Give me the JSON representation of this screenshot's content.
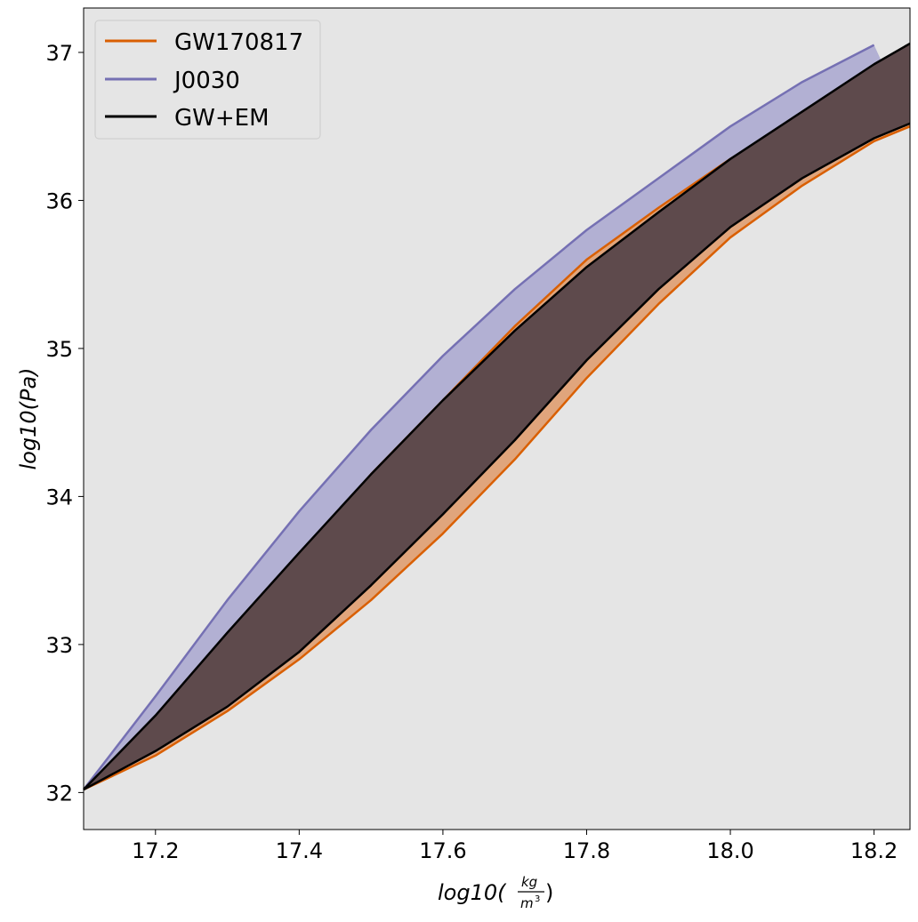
{
  "chart_data": {
    "type": "area",
    "xlabel_main": "log10(",
    "xlabel_num": "kg",
    "xlabel_den": "m",
    "xlabel_den_exp": "3",
    "xlabel_close": ")",
    "ylabel": "log10(Pa)",
    "xlim": [
      17.1,
      18.25
    ],
    "ylim": [
      31.75,
      37.3
    ],
    "xticks": [
      17.2,
      17.4,
      17.6,
      17.8,
      18.0,
      18.2
    ],
    "xtick_labels": [
      "17.2",
      "17.4",
      "17.6",
      "17.8",
      "18.0",
      "18.2"
    ],
    "yticks": [
      32,
      33,
      34,
      35,
      36,
      37
    ],
    "ytick_labels": [
      "32",
      "33",
      "34",
      "35",
      "36",
      "37"
    ],
    "grid": false,
    "background": "#e5e5e5",
    "legend_position": "top-left",
    "series": [
      {
        "name": "J0030",
        "color": "#7570b3",
        "fill": "#b2b0d3",
        "upper": [
          [
            17.1,
            32.02
          ],
          [
            17.2,
            32.65
          ],
          [
            17.3,
            33.3
          ],
          [
            17.4,
            33.9
          ],
          [
            17.5,
            34.45
          ],
          [
            17.6,
            34.95
          ],
          [
            17.7,
            35.4
          ],
          [
            17.8,
            35.8
          ],
          [
            17.9,
            36.15
          ],
          [
            18.0,
            36.5
          ],
          [
            18.1,
            36.8
          ],
          [
            18.2,
            37.05
          ]
        ],
        "lower": [
          [
            17.1,
            32.02
          ],
          [
            17.2,
            32.28
          ],
          [
            17.3,
            32.6
          ],
          [
            17.4,
            33.02
          ],
          [
            17.5,
            33.48
          ],
          [
            17.6,
            33.96
          ],
          [
            17.7,
            34.45
          ],
          [
            17.8,
            34.95
          ],
          [
            17.9,
            35.45
          ],
          [
            18.0,
            35.9
          ],
          [
            18.1,
            36.22
          ],
          [
            18.2,
            36.45
          ],
          [
            18.25,
            36.52
          ]
        ]
      },
      {
        "name": "GW170817",
        "color": "#d95f02",
        "fill": "#e0a57c",
        "upper": [
          [
            17.1,
            32.02
          ],
          [
            17.2,
            32.5
          ],
          [
            17.3,
            33.05
          ],
          [
            17.4,
            33.6
          ],
          [
            17.5,
            34.15
          ],
          [
            17.6,
            34.65
          ],
          [
            17.7,
            35.15
          ],
          [
            17.8,
            35.6
          ],
          [
            17.9,
            35.95
          ],
          [
            18.0,
            36.28
          ],
          [
            18.1,
            36.58
          ],
          [
            18.2,
            36.88
          ],
          [
            18.25,
            37.0
          ]
        ],
        "lower": [
          [
            17.1,
            32.02
          ],
          [
            17.2,
            32.25
          ],
          [
            17.3,
            32.55
          ],
          [
            17.4,
            32.9
          ],
          [
            17.5,
            33.3
          ],
          [
            17.6,
            33.75
          ],
          [
            17.7,
            34.25
          ],
          [
            17.8,
            34.8
          ],
          [
            17.9,
            35.3
          ],
          [
            18.0,
            35.75
          ],
          [
            18.1,
            36.1
          ],
          [
            18.2,
            36.4
          ],
          [
            18.25,
            36.5
          ]
        ]
      },
      {
        "name": "GW+EM",
        "color": "#000000",
        "fill": "#5e4a4c",
        "upper": [
          [
            17.1,
            32.02
          ],
          [
            17.2,
            32.52
          ],
          [
            17.3,
            33.08
          ],
          [
            17.4,
            33.62
          ],
          [
            17.5,
            34.15
          ],
          [
            17.6,
            34.65
          ],
          [
            17.7,
            35.12
          ],
          [
            17.8,
            35.55
          ],
          [
            17.9,
            35.92
          ],
          [
            18.0,
            36.28
          ],
          [
            18.1,
            36.6
          ],
          [
            18.2,
            36.92
          ],
          [
            18.25,
            37.06
          ]
        ],
        "lower": [
          [
            17.1,
            32.02
          ],
          [
            17.2,
            32.28
          ],
          [
            17.3,
            32.58
          ],
          [
            17.4,
            32.95
          ],
          [
            17.5,
            33.4
          ],
          [
            17.6,
            33.88
          ],
          [
            17.7,
            34.38
          ],
          [
            17.8,
            34.92
          ],
          [
            17.9,
            35.4
          ],
          [
            18.0,
            35.82
          ],
          [
            18.1,
            36.15
          ],
          [
            18.2,
            36.42
          ],
          [
            18.25,
            36.52
          ]
        ]
      }
    ]
  }
}
